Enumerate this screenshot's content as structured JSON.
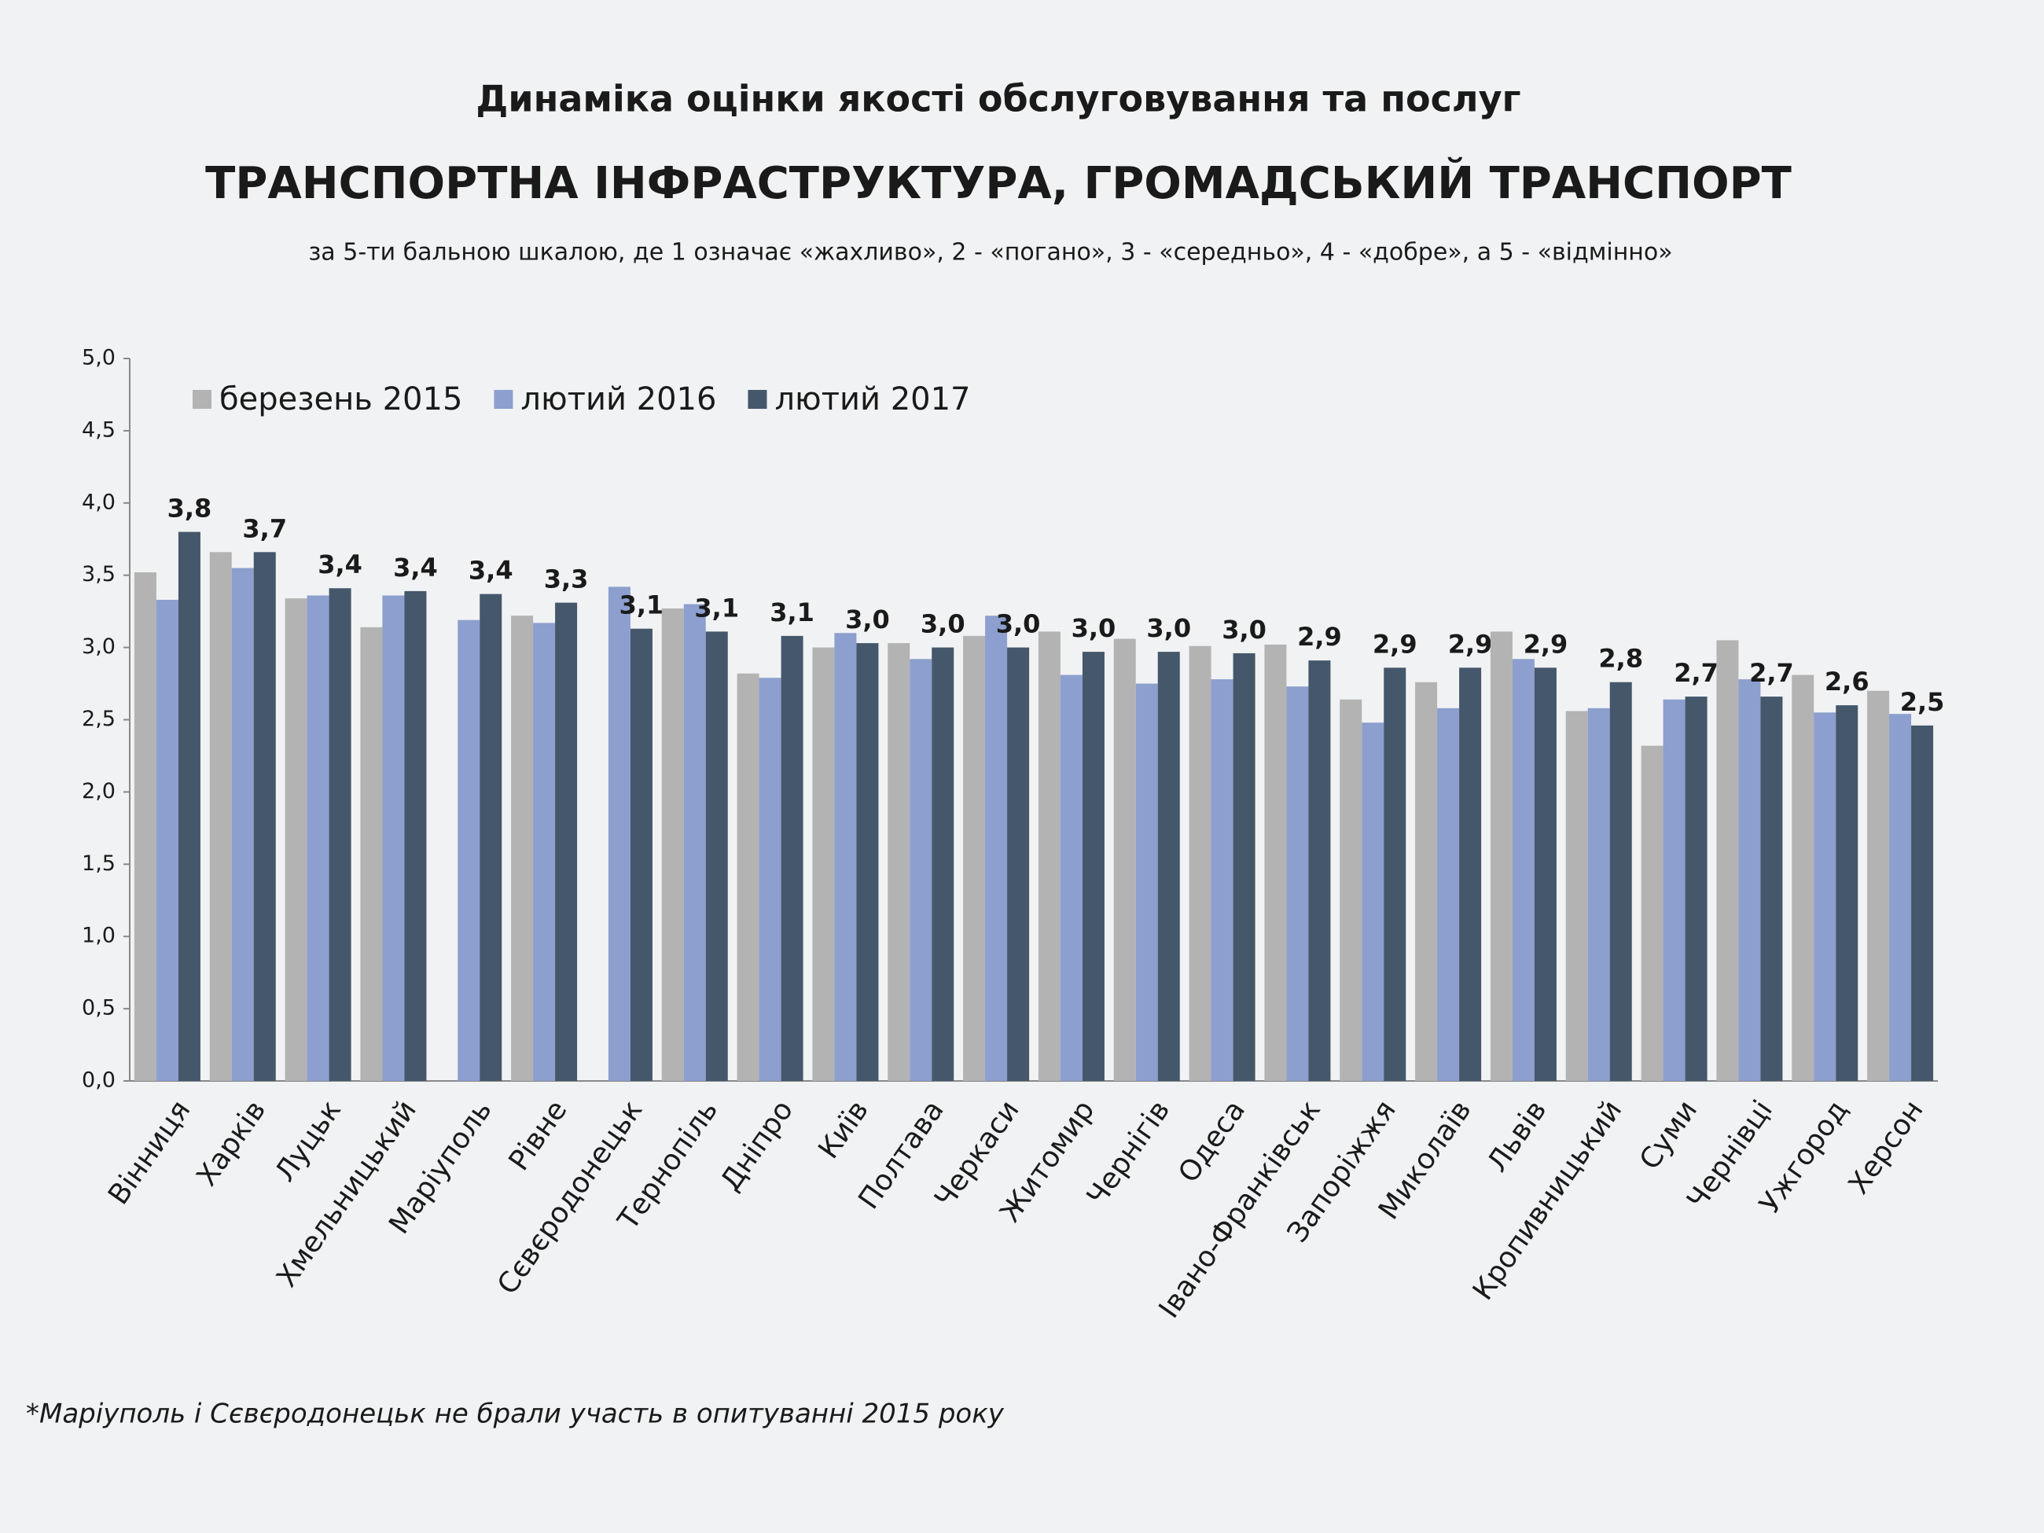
{
  "chart_data": {
    "type": "bar",
    "title": "Динаміка оцінки якості обслуговування та послуг",
    "subtitle": "ТРАНСПОРТНА ІНФРАСТРУКТУРА, ГРОМАДСЬКИЙ ТРАНСПОРТ",
    "note": "за 5-ти бальною шкалою, де 1 означає «жахливо», 2 - «погано», 3 - «середньо», 4 - «добре», а 5 - «відмінно»",
    "footnote": "*Маріуполь і Сєвєродонецьк не брали участь в опитуванні 2015 року",
    "categories": [
      "Вінниця",
      "Харків",
      "Луцьк",
      "Хмельницький",
      "Маріуполь",
      "Рівне",
      "Сєвєродонецьк",
      "Тернопіль",
      "Дніпро",
      "Київ",
      "Полтава",
      "Черкаси",
      "Житомир",
      "Чернігів",
      "Одеса",
      "Івано-Франківськ",
      "Запоріжжя",
      "Миколаїв",
      "Львів",
      "Кропивницький",
      "Суми",
      "Чернівці",
      "Ужгород",
      "Херсон"
    ],
    "series": [
      {
        "name": "березень 2015",
        "color": "#b3b3b3",
        "values": [
          3.52,
          3.66,
          3.34,
          3.14,
          null,
          3.22,
          null,
          3.27,
          2.82,
          3.0,
          3.03,
          3.08,
          3.11,
          3.06,
          3.01,
          3.02,
          2.64,
          2.76,
          3.11,
          2.56,
          2.32,
          3.05,
          2.81,
          2.7
        ]
      },
      {
        "name": "лютий 2016",
        "color": "#8c9fce",
        "values": [
          3.33,
          3.55,
          3.36,
          3.36,
          3.19,
          3.17,
          3.42,
          3.3,
          2.79,
          3.1,
          2.92,
          3.22,
          2.81,
          2.75,
          2.78,
          2.73,
          2.48,
          2.58,
          2.92,
          2.58,
          2.64,
          2.78,
          2.55,
          2.54
        ]
      },
      {
        "name": "лютий 2017",
        "color": "#44576b",
        "values": [
          3.8,
          3.66,
          3.41,
          3.39,
          3.37,
          3.31,
          3.13,
          3.11,
          3.08,
          3.03,
          3.0,
          3.0,
          2.97,
          2.97,
          2.96,
          2.91,
          2.86,
          2.86,
          2.86,
          2.76,
          2.66,
          2.66,
          2.6,
          2.46
        ],
        "value_labels": [
          "3,8",
          "3,7",
          "3,4",
          "3,4",
          "3,4",
          "3,3",
          "3,1",
          "3,1",
          "3,1",
          "3,0",
          "3,0",
          "3,0",
          "3,0",
          "3,0",
          "3,0",
          "2,9",
          "2,9",
          "2,9",
          "2,9",
          "2,8",
          "2,7",
          "2,7",
          "2,6",
          "2,5"
        ]
      }
    ],
    "ylim": [
      0,
      5
    ],
    "yticks": [
      {
        "value": 0,
        "label": "0,0"
      },
      {
        "value": 0.5,
        "label": "0,5"
      },
      {
        "value": 1,
        "label": "1,0"
      },
      {
        "value": 1.5,
        "label": "1,5"
      },
      {
        "value": 2,
        "label": "2,0"
      },
      {
        "value": 2.5,
        "label": "2,5"
      },
      {
        "value": 3,
        "label": "3,0"
      },
      {
        "value": 3.5,
        "label": "3,5"
      },
      {
        "value": 4,
        "label": "4,0"
      },
      {
        "value": 4.5,
        "label": "4,5"
      },
      {
        "value": 5,
        "label": "5,0"
      }
    ],
    "legend": "top-left",
    "grid": false
  }
}
